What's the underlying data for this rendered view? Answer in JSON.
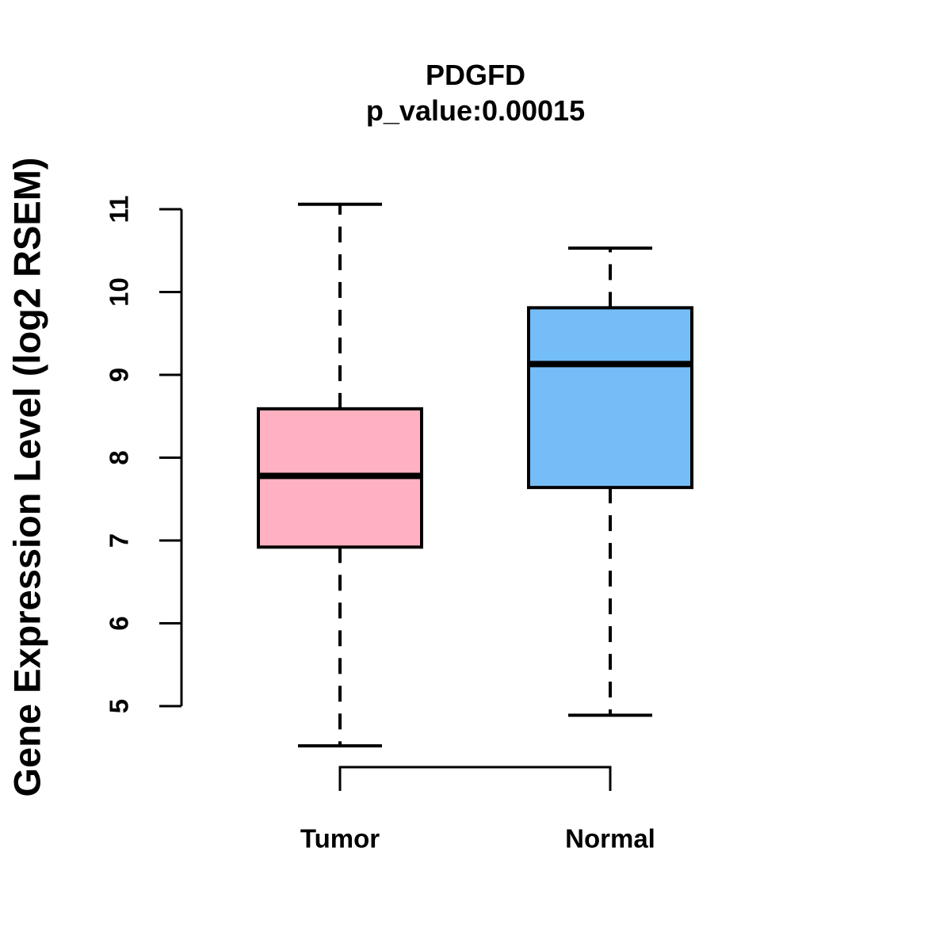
{
  "title": "PDGFD",
  "subtitle": "p_value:0.00015",
  "ylabel": "Gene Expression Level (log2 RSEM)",
  "p_value": "0.00015",
  "chart_data": {
    "type": "boxplot",
    "title": "PDGFD",
    "subtitle": "p_value:0.00015",
    "xlabel": "",
    "ylabel": "Gene Expression Level (log2 RSEM)",
    "ylim": [
      5,
      11
    ],
    "yticks": [
      5,
      6,
      7,
      8,
      9,
      10,
      11
    ],
    "grid": false,
    "legend": "none",
    "categories": [
      "Tumor",
      "Normal"
    ],
    "series": [
      {
        "name": "Tumor",
        "color": "#FFB1C1",
        "whisker_low": 4.52,
        "q1": 6.92,
        "median": 7.78,
        "q3": 8.59,
        "whisker_high": 11.06
      },
      {
        "name": "Normal",
        "color": "#75BDF7",
        "whisker_low": 4.89,
        "q1": 7.64,
        "median": 9.13,
        "q3": 9.81,
        "whisker_high": 10.53
      }
    ],
    "stroke_color": "#000000",
    "background_color": "#FFFFFF"
  }
}
